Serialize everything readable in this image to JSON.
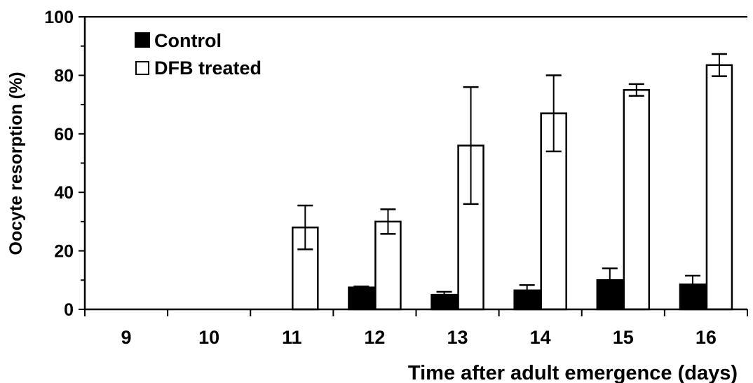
{
  "chart_data": {
    "type": "bar",
    "title": "",
    "xlabel": "Time after adult emergence (days)",
    "ylabel": "Oocyte resorption (%)",
    "ylim": [
      0,
      100
    ],
    "yticks": [
      "0",
      "20",
      "40",
      "60",
      "80",
      "100"
    ],
    "categories": [
      "9",
      "10",
      "11",
      "12",
      "13",
      "14",
      "15",
      "16"
    ],
    "legend_position": "top-left",
    "grid": false,
    "series": [
      {
        "name": "Control",
        "color": "#000000",
        "values": [
          0,
          0,
          0,
          7.5,
          5,
          6.5,
          10,
          8.5
        ],
        "error": [
          0,
          0,
          0,
          0.3,
          1,
          1.8,
          4,
          3
        ]
      },
      {
        "name": "DFB treated",
        "color": "#ffffff",
        "values": [
          0,
          0,
          28,
          30,
          56,
          67,
          75,
          83.5
        ],
        "error": [
          0,
          0,
          7.5,
          4.2,
          20,
          13,
          2,
          3.8
        ]
      }
    ]
  }
}
